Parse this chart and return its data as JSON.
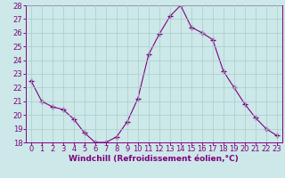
{
  "x": [
    0,
    1,
    2,
    3,
    4,
    5,
    6,
    7,
    8,
    9,
    10,
    11,
    12,
    13,
    14,
    15,
    16,
    17,
    18,
    19,
    20,
    21,
    22,
    23
  ],
  "y": [
    22.5,
    21.0,
    20.6,
    20.4,
    19.7,
    18.7,
    18.0,
    18.0,
    18.4,
    19.5,
    21.2,
    24.4,
    25.9,
    27.2,
    28.0,
    26.4,
    26.0,
    25.5,
    23.2,
    22.0,
    20.8,
    19.8,
    19.0,
    18.5
  ],
  "line_color": "#800080",
  "marker": "+",
  "marker_size": 4,
  "marker_linewidth": 1.0,
  "bg_color": "#cce8e8",
  "grid_color": "#aacccc",
  "xlabel": "Windchill (Refroidissement éolien,°C)",
  "xlabel_color": "#800080",
  "tick_color": "#800080",
  "spine_color": "#800080",
  "ylim": [
    18,
    28
  ],
  "yticks": [
    18,
    19,
    20,
    21,
    22,
    23,
    24,
    25,
    26,
    27,
    28
  ],
  "xticks": [
    0,
    1,
    2,
    3,
    4,
    5,
    6,
    7,
    8,
    9,
    10,
    11,
    12,
    13,
    14,
    15,
    16,
    17,
    18,
    19,
    20,
    21,
    22,
    23
  ],
  "tick_fontsize": 6.0,
  "xlabel_fontsize": 6.5,
  "linewidth": 0.8
}
